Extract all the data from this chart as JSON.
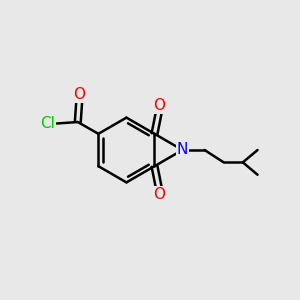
{
  "background_color": "#e8e8e8",
  "bond_color": "#000000",
  "bond_width": 1.8,
  "atom_colors": {
    "O": "#ff0000",
    "N": "#0000ff",
    "Cl": "#00cc00",
    "C": "#000000"
  },
  "font_size": 11,
  "figsize": [
    3.0,
    3.0
  ],
  "dpi": 100
}
